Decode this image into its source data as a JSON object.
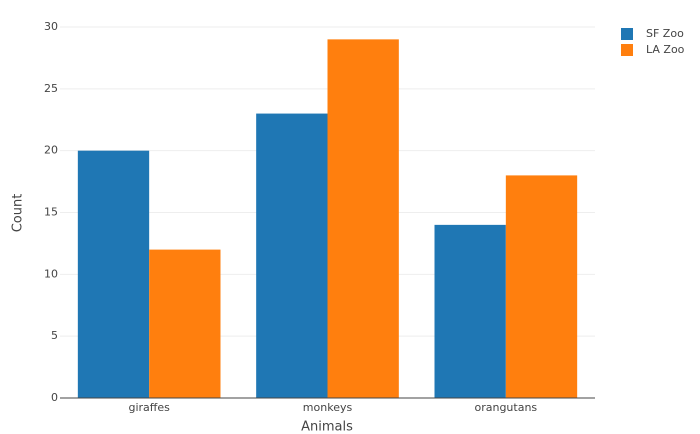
{
  "chart_data": {
    "type": "bar",
    "x_label": "Animals",
    "y_label": "Count",
    "categories": [
      "giraffes",
      "monkeys",
      "orangutans"
    ],
    "series": [
      {
        "name": "SF Zoo",
        "color": "#1f77b4",
        "values": [
          20,
          23,
          14
        ]
      },
      {
        "name": "LA Zoo",
        "color": "#ff7f0e",
        "values": [
          12,
          29,
          18
        ]
      }
    ],
    "ylim": [
      0,
      30
    ],
    "yticks": [
      0,
      5,
      10,
      15,
      20,
      25,
      30
    ],
    "grid": true,
    "legend": "top-right"
  }
}
